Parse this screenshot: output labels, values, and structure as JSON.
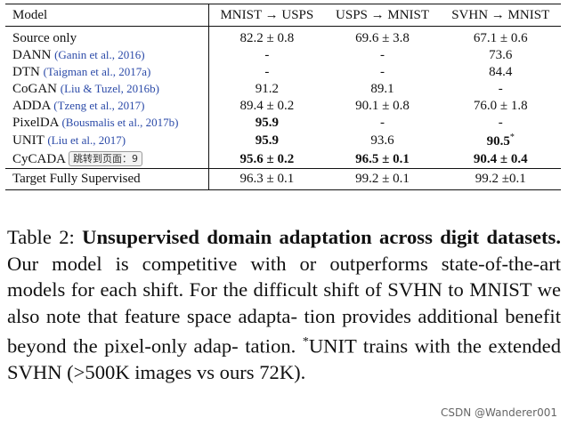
{
  "table": {
    "headers": [
      "Model",
      "MNIST → USPS",
      "USPS → MNIST",
      "SVHN → MNIST"
    ],
    "rows": [
      {
        "model": "Source only",
        "cite": "",
        "c1": "82.2 ± 0.8",
        "c2": "69.6 ± 3.8",
        "c3": "67.1 ± 0.6"
      },
      {
        "model": "DANN",
        "cite": "(Ganin et al., 2016)",
        "c1": "-",
        "c2": "-",
        "c3": "73.6"
      },
      {
        "model": "DTN",
        "cite": "(Taigman et al., 2017a)",
        "c1": "-",
        "c2": "-",
        "c3": "84.4"
      },
      {
        "model": "CoGAN",
        "cite": "(Liu & Tuzel, 2016b)",
        "c1": "91.2",
        "c2": "89.1",
        "c3": "-"
      },
      {
        "model": "ADDA",
        "cite": "(Tzeng et al., 2017)",
        "c1": "89.4 ± 0.2",
        "c2": "90.1 ± 0.8",
        "c3": "76.0 ± 1.8"
      },
      {
        "model": "PixelDA",
        "cite": "(Bousmalis et al., 2017b)",
        "c1": "95.9",
        "c2": "-",
        "c3": "-"
      },
      {
        "model": "UNIT",
        "cite": "(Liu et al., 2017)",
        "c1": "95.9",
        "c2": "93.6",
        "c3": "90.5",
        "c3_sup": "*"
      },
      {
        "model": "CyCADA",
        "tooltip": "跳转到页面：9",
        "c1": "95.6 ± 0.2",
        "c2": "96.5 ± 0.1",
        "c3": "90.4 ± 0.4"
      },
      {
        "model": "Target Fully Supervised",
        "cite": "",
        "c1": "96.3 ± 0.1",
        "c2": "99.2 ± 0.1",
        "c3": "99.2 ±0.1"
      }
    ]
  },
  "caption": {
    "label": "Table 2:",
    "bold_text": "Unsupervised domain adaptation across digit datasets.",
    "text": "Our model is competitive with or outperforms state-of-the-art models for each shift. For the difficult shift of SVHN to MNIST we also note that feature space adapta- tion provides additional benefit beyond the pixel-only adap- tation.",
    "footnote_mark": "*",
    "footnote": "UNIT trains with the extended SVHN (>500K images vs ours 72K)."
  },
  "watermark": "CSDN @Wanderer001"
}
